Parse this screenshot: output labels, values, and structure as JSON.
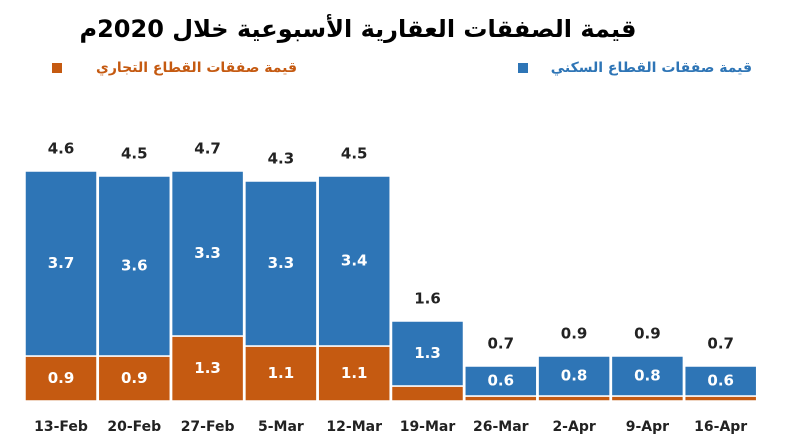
{
  "chart_data": {
    "type": "stacked-bar",
    "title": "قيمة الصفقات العقارية الأسبوعية خلال 2020م",
    "categories": [
      "13-Feb",
      "20-Feb",
      "27-Feb",
      "5-Mar",
      "12-Mar",
      "19-Mar",
      "26-Mar",
      "2-Apr",
      "9-Apr",
      "16-Apr"
    ],
    "series": [
      {
        "name": "قيمة صفقات القطاع التجاري",
        "color": "#c55a11",
        "values": [
          0.9,
          0.9,
          1.3,
          1.1,
          1.1,
          0.3,
          0.1,
          0.1,
          0.1,
          0.1
        ]
      },
      {
        "name": "قيمة صفقات القطاع السكني",
        "color": "#2e75b6",
        "values": [
          3.7,
          3.6,
          3.3,
          3.3,
          3.4,
          1.3,
          0.6,
          0.8,
          0.8,
          0.6
        ]
      }
    ],
    "totals": [
      4.6,
      4.5,
      4.7,
      4.3,
      4.5,
      1.6,
      0.7,
      0.9,
      0.9,
      0.7
    ]
  }
}
